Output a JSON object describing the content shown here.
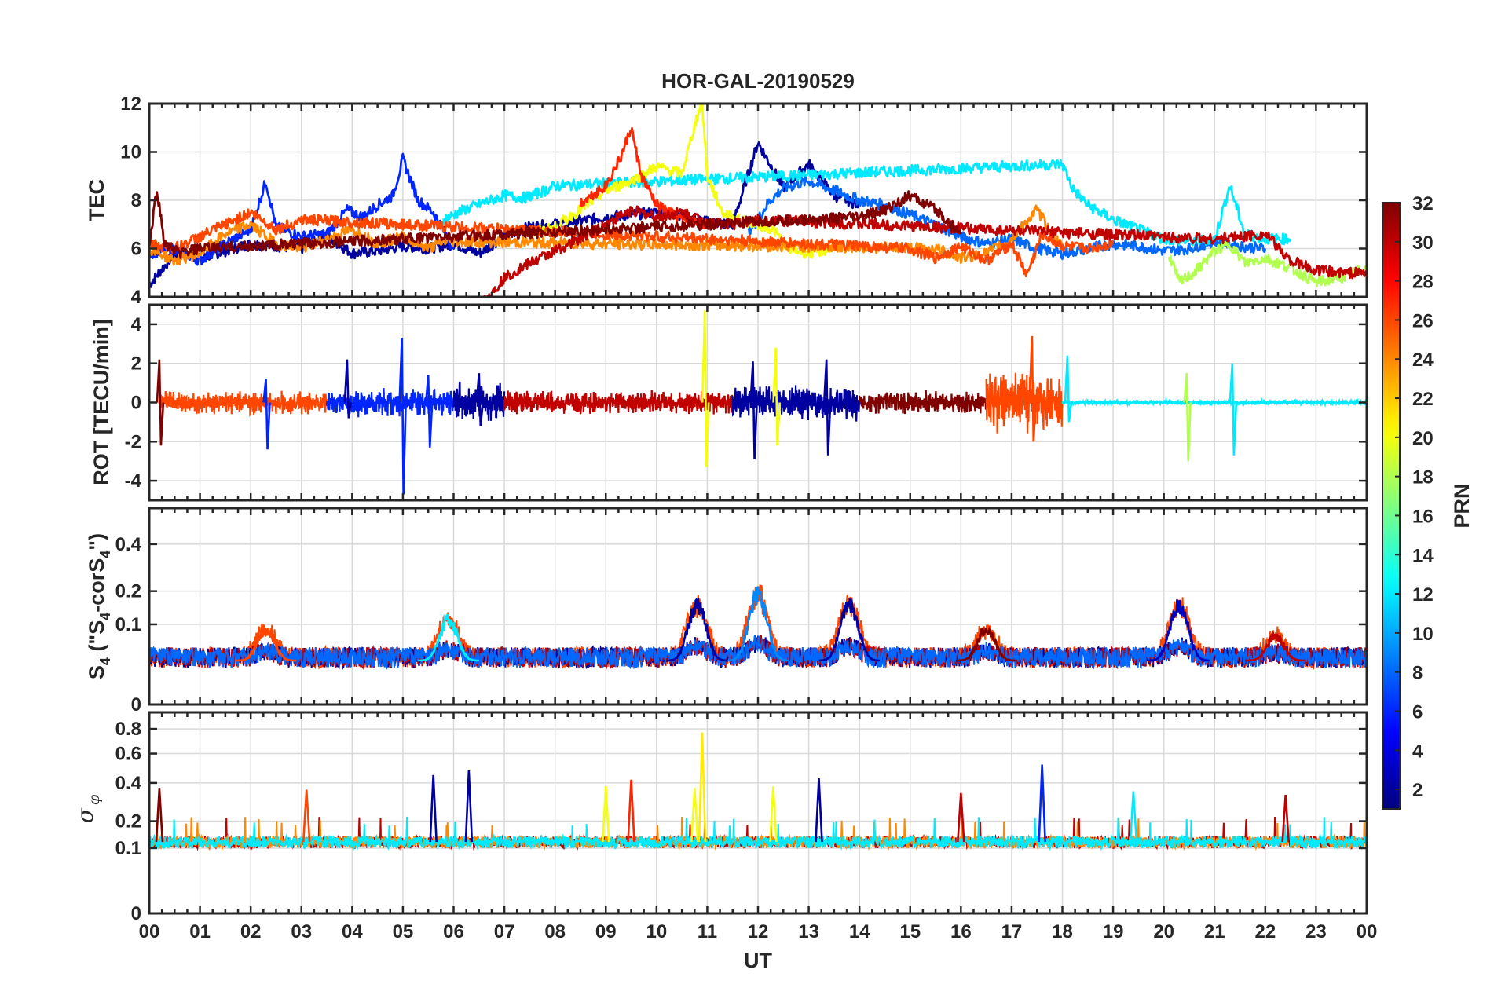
{
  "chart_data": [
    {
      "type": "line",
      "panel": "TEC",
      "title": "HOR-GAL-20190529",
      "ylabel": "TEC",
      "ylim": [
        4,
        12
      ],
      "yticks": [
        "4",
        "6",
        "8",
        "10",
        "12"
      ],
      "series": [
        {
          "prn": 2,
          "x": [
            0,
            0.5,
            1,
            2,
            3,
            3.5,
            4,
            4.5,
            5,
            5.5,
            6,
            6.5,
            7,
            7.5,
            8,
            9,
            10,
            10.5,
            11,
            11.5,
            12,
            12.5,
            13,
            13.5,
            14
          ],
          "values": [
            4.5,
            5.8,
            5.6,
            6.2,
            6.0,
            6.5,
            5.8,
            5.9,
            6.1,
            6.0,
            6.2,
            5.8,
            6.5,
            6.9,
            7.0,
            7.3,
            7.5,
            7.4,
            7.1,
            7.0,
            10.4,
            8.5,
            9.5,
            8.2,
            7.8
          ]
        },
        {
          "prn": 6,
          "x": [
            0,
            0.5,
            1,
            1.5,
            2,
            2.3,
            2.5,
            3,
            3.5,
            3.9,
            4.2,
            4.5,
            4.8,
            5,
            5.3,
            5.6,
            6
          ],
          "values": [
            5.8,
            6.0,
            5.5,
            6.2,
            6.8,
            8.8,
            6.9,
            6.5,
            6.6,
            7.6,
            7.3,
            7.8,
            8.2,
            9.7,
            8.0,
            7.5,
            6.0
          ]
        },
        {
          "prn": 8,
          "x": [
            11.8,
            12,
            12.2,
            12.5,
            13,
            13.5,
            14,
            14.5,
            15,
            15.5,
            16,
            16.5,
            17,
            17.5,
            18,
            18.5,
            19,
            19.5,
            20,
            20.5,
            21,
            21.5,
            22
          ],
          "values": [
            6.7,
            7.2,
            7.9,
            8.5,
            8.8,
            8.4,
            8.0,
            7.8,
            7.4,
            7.0,
            6.5,
            6.2,
            6.4,
            6.0,
            5.8,
            6.0,
            6.2,
            6.1,
            5.9,
            6.0,
            6.3,
            6.1,
            6.0
          ]
        },
        {
          "prn": 12,
          "x": [
            5.8,
            6.2,
            6.6,
            7,
            7.4,
            7.8,
            8,
            18,
            18.2,
            18.5,
            19,
            19.5,
            20,
            20.5,
            21,
            21.3,
            21.6,
            22,
            22.5
          ],
          "values": [
            7.2,
            7.6,
            7.9,
            8.2,
            8.1,
            8.4,
            8.6,
            9.5,
            8.5,
            7.8,
            7.2,
            6.8,
            6.4,
            6.3,
            6.4,
            8.6,
            6.6,
            6.4,
            6.4
          ]
        },
        {
          "prn": 20,
          "x": [
            7.5,
            8,
            8.5,
            9,
            9.5,
            10,
            10.5,
            10.8,
            10.9,
            11,
            11.3,
            11.6,
            12,
            12.3,
            12.6,
            13,
            13.5
          ],
          "values": [
            6.6,
            6.9,
            7.6,
            8.4,
            8.8,
            9.4,
            9.1,
            11.5,
            12.0,
            9.0,
            7.5,
            7.2,
            7.0,
            6.8,
            6.0,
            5.8,
            6.0
          ]
        },
        {
          "prn": 18,
          "x": [
            20.1,
            20.3,
            20.6,
            21,
            21.3,
            21.6,
            22,
            22.5,
            23,
            23.5,
            24
          ],
          "values": [
            5.8,
            4.6,
            5.0,
            5.9,
            6.2,
            5.4,
            5.6,
            5.2,
            4.6,
            4.8,
            5.2
          ]
        },
        {
          "prn": 24,
          "x": [
            0,
            0.5,
            1,
            1.5,
            2,
            2.5,
            3,
            3.5,
            4,
            4.5,
            5,
            5.5,
            5.8,
            15.5,
            16,
            16.5,
            17,
            17.5,
            18
          ],
          "values": [
            6.0,
            5.5,
            5.8,
            6.6,
            7.0,
            6.2,
            6.0,
            6.4,
            6.8,
            6.2,
            6.5,
            6.0,
            6.3,
            6.0,
            5.6,
            5.8,
            6.4,
            7.6,
            6.0
          ]
        },
        {
          "prn": 26,
          "x": [
            0,
            0.5,
            1,
            1.5,
            2,
            2.5,
            2.8,
            3,
            15,
            15.5,
            16,
            16.5,
            17,
            17.3,
            17.6,
            18,
            18.5,
            19
          ],
          "values": [
            6.2,
            6.0,
            6.5,
            7.0,
            7.5,
            6.8,
            7.0,
            7.2,
            6.0,
            5.6,
            6.1,
            5.5,
            6.2,
            4.9,
            6.6,
            6.1,
            6.0,
            6.2
          ]
        },
        {
          "prn": 27,
          "x": [
            8.5,
            9,
            9.3,
            9.5,
            9.7,
            10,
            10.5,
            11
          ],
          "values": [
            7.9,
            8.6,
            9.8,
            11.0,
            9.0,
            7.8,
            7.2,
            7.0
          ]
        },
        {
          "prn": 30,
          "x": [
            6.6,
            7,
            7.5,
            8,
            8.5,
            9,
            9.5,
            10,
            10.5,
            11,
            11.5,
            12,
            21,
            21.5,
            22,
            22.5,
            23,
            23.5,
            24
          ],
          "values": [
            3.8,
            4.8,
            5.4,
            5.9,
            6.4,
            7.0,
            7.6,
            7.3,
            7.5,
            7.1,
            7.0,
            7.2,
            6.4,
            6.5,
            6.6,
            5.5,
            5.1,
            5.0,
            5.0
          ]
        },
        {
          "prn": 32,
          "x": [
            0,
            0.15,
            0.3,
            0.6,
            1,
            14,
            14.5,
            15,
            15.5,
            16
          ],
          "values": [
            6.0,
            8.5,
            6.2,
            5.8,
            6.0,
            7.3,
            7.6,
            8.2,
            7.6,
            6.6
          ]
        }
      ]
    },
    {
      "type": "line",
      "panel": "ROT",
      "ylabel": "ROT [TECU/min]",
      "ylim": [
        -5,
        5
      ],
      "yticks": [
        "-4",
        "-2",
        "0",
        "2",
        "4"
      ],
      "spikes": [
        {
          "prn": 32,
          "x": 0.2,
          "values": [
            2.2,
            -2.2
          ]
        },
        {
          "prn": 6,
          "x": 2.3,
          "values": [
            1.2,
            -2.4
          ]
        },
        {
          "prn": 2,
          "x": 3.9,
          "values": [
            2.2,
            -0.8
          ]
        },
        {
          "prn": 6,
          "x": 4.98,
          "values": [
            3.3,
            -4.7
          ]
        },
        {
          "prn": 6,
          "x": 5.5,
          "values": [
            1.4,
            -2.3
          ]
        },
        {
          "prn": 2,
          "x": 6.5,
          "values": [
            1.5,
            -1.2
          ]
        },
        {
          "prn": 20,
          "x": 10.95,
          "values": [
            4.7,
            -3.3
          ]
        },
        {
          "prn": 2,
          "x": 11.9,
          "values": [
            2.1,
            -2.9
          ]
        },
        {
          "prn": 20,
          "x": 12.35,
          "values": [
            2.8,
            -2.2
          ]
        },
        {
          "prn": 2,
          "x": 13.35,
          "values": [
            2.2,
            -2.7
          ]
        },
        {
          "prn": 26,
          "x": 17.4,
          "values": [
            3.4,
            -2.0
          ]
        },
        {
          "prn": 12,
          "x": 18.1,
          "values": [
            2.4,
            -1.0
          ]
        },
        {
          "prn": 18,
          "x": 20.45,
          "values": [
            1.5,
            -3.0
          ]
        },
        {
          "prn": 12,
          "x": 21.35,
          "values": [
            2.0,
            -2.7
          ]
        }
      ],
      "bands": [
        {
          "prn": 26,
          "x": [
            0.2,
            3.5
          ],
          "amplitude": 0.5
        },
        {
          "prn": 6,
          "x": [
            3.5,
            6.0
          ],
          "amplitude": 0.6
        },
        {
          "prn": 2,
          "x": [
            6.0,
            7.0
          ],
          "amplitude": 0.9
        },
        {
          "prn": 30,
          "x": [
            7.0,
            11.5
          ],
          "amplitude": 0.5
        },
        {
          "prn": 2,
          "x": [
            11.5,
            14.0
          ],
          "amplitude": 0.8
        },
        {
          "prn": 32,
          "x": [
            14.0,
            16.5
          ],
          "amplitude": 0.5
        },
        {
          "prn": 26,
          "x": [
            16.5,
            18.0
          ],
          "amplitude": 1.3
        },
        {
          "prn": 12,
          "x": [
            18.0,
            24.0
          ],
          "amplitude": 0.1
        }
      ]
    },
    {
      "type": "line",
      "panel": "S4",
      "ylabel": "S",
      "ylabel_sub": "4",
      "ylabel_paren": "(\"S",
      "ylabel_mid": "-corS",
      "ylabel_end": "\")",
      "ylim": [
        0,
        0.6
      ],
      "yscale_note": "nonlinear",
      "yticks": [
        "0",
        "0.1",
        "0.2",
        "0.4"
      ],
      "peaks": [
        {
          "prn": 26,
          "x": 2.3,
          "value": 0.1
        },
        {
          "prn": 12,
          "x": 5.9,
          "value": 0.13
        },
        {
          "prn": 2,
          "x": 10.8,
          "value": 0.18
        },
        {
          "prn": 9,
          "x": 12.0,
          "value": 0.22
        },
        {
          "prn": 2,
          "x": 13.8,
          "value": 0.18
        },
        {
          "prn": 32,
          "x": 16.5,
          "value": 0.1
        },
        {
          "prn": 3,
          "x": 20.3,
          "value": 0.18
        },
        {
          "prn": 30,
          "x": 22.2,
          "value": 0.08
        }
      ],
      "baseline": 0.03
    },
    {
      "type": "line",
      "panel": "sigma_phi",
      "ylabel": "σ",
      "ylabel_sub": "φ",
      "xlabel": "UT",
      "ylim": [
        0,
        0.95
      ],
      "yscale_note": "nonlinear",
      "yticks": [
        "0",
        "0.1",
        "0.2",
        "0.4",
        "0.6",
        "0.8"
      ],
      "xticks": [
        "00",
        "01",
        "02",
        "03",
        "04",
        "05",
        "06",
        "07",
        "08",
        "09",
        "10",
        "11",
        "12",
        "13",
        "14",
        "15",
        "16",
        "17",
        "18",
        "19",
        "20",
        "21",
        "22",
        "23",
        "00"
      ],
      "peaks": [
        {
          "prn": 32,
          "x": 0.2,
          "value": 0.37
        },
        {
          "prn": 26,
          "x": 3.1,
          "value": 0.36
        },
        {
          "prn": 2,
          "x": 5.6,
          "value": 0.45
        },
        {
          "prn": 2,
          "x": 6.3,
          "value": 0.48
        },
        {
          "prn": 20,
          "x": 9.0,
          "value": 0.38
        },
        {
          "prn": 27,
          "x": 9.5,
          "value": 0.42
        },
        {
          "prn": 20,
          "x": 10.75,
          "value": 0.37
        },
        {
          "prn": 21,
          "x": 10.9,
          "value": 0.77
        },
        {
          "prn": 20,
          "x": 12.3,
          "value": 0.38
        },
        {
          "prn": 2,
          "x": 13.2,
          "value": 0.43
        },
        {
          "prn": 30,
          "x": 16.0,
          "value": 0.34
        },
        {
          "prn": 6,
          "x": 17.6,
          "value": 0.52
        },
        {
          "prn": 12,
          "x": 19.4,
          "value": 0.35
        },
        {
          "prn": 30,
          "x": 22.4,
          "value": 0.33
        }
      ],
      "baseline": 0.12
    }
  ],
  "colorbar": {
    "label": "PRN",
    "range": [
      1,
      32
    ],
    "ticks": [
      "2",
      "4",
      "6",
      "8",
      "10",
      "12",
      "14",
      "16",
      "18",
      "20",
      "22",
      "24",
      "26",
      "28",
      "30",
      "32"
    ],
    "colormap": "jet"
  }
}
